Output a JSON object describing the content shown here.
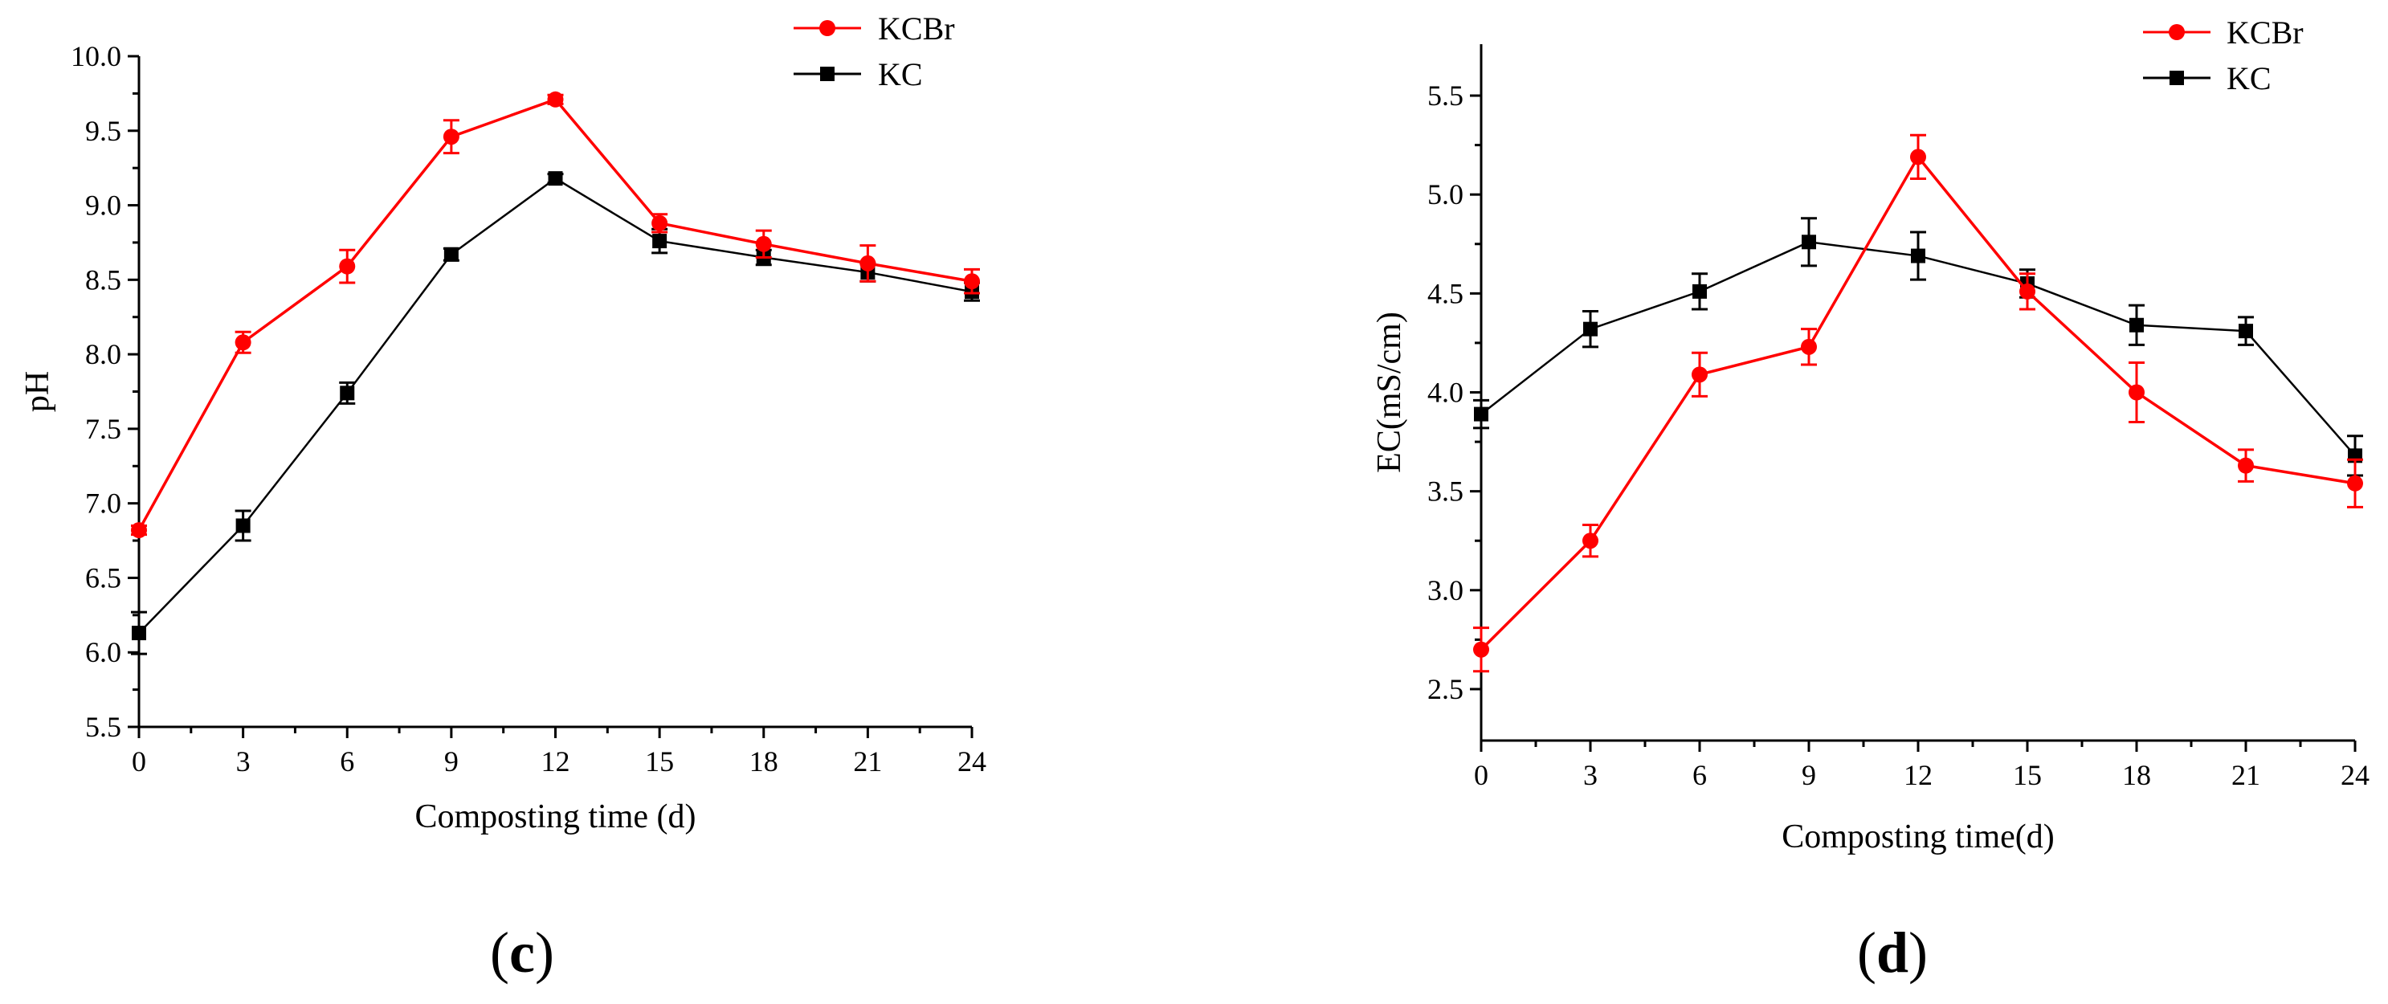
{
  "figure": {
    "panels": [
      "c",
      "d"
    ]
  },
  "colors": {
    "KCBr": "#ff0000",
    "KC": "#000000",
    "axis": "#000000"
  },
  "chart_data": [
    {
      "type": "line",
      "panel_label": "c",
      "panel_label_open": "(",
      "panel_label_close": ")",
      "title": "",
      "xlabel": "Composting time (d)",
      "ylabel": "pH",
      "x": [
        0,
        3,
        6,
        9,
        12,
        15,
        18,
        21,
        24
      ],
      "xticks": [
        "0",
        "3",
        "6",
        "9",
        "12",
        "15",
        "18",
        "21",
        "24"
      ],
      "xlim": [
        0,
        24
      ],
      "yticks": [
        "5.5",
        "6.0",
        "6.5",
        "7.0",
        "7.5",
        "8.0",
        "8.5",
        "9.0",
        "9.5",
        "10.0"
      ],
      "ylim": [
        5.5,
        10.0
      ],
      "legend_position": "top-right",
      "grid": false,
      "series": [
        {
          "name": "KCBr",
          "marker": "circle",
          "color": "#ff0000",
          "values": [
            6.82,
            8.08,
            8.59,
            9.46,
            9.71,
            8.88,
            8.74,
            8.61,
            8.49
          ],
          "errors": [
            0.03,
            0.07,
            0.11,
            0.11,
            0.03,
            0.06,
            0.09,
            0.12,
            0.08
          ]
        },
        {
          "name": "KC",
          "marker": "square",
          "color": "#000000",
          "values": [
            6.13,
            6.85,
            7.74,
            8.67,
            9.18,
            8.76,
            8.65,
            8.55,
            8.42
          ],
          "errors": [
            0.14,
            0.1,
            0.07,
            0.04,
            0.03,
            0.08,
            0.05,
            0.06,
            0.06
          ]
        }
      ]
    },
    {
      "type": "line",
      "panel_label": "d",
      "panel_label_open": "(",
      "panel_label_close": ")",
      "title": "",
      "xlabel": "Composting time(d)",
      "ylabel": "EC(mS/cm)",
      "x": [
        0,
        3,
        6,
        9,
        12,
        15,
        18,
        21,
        24
      ],
      "xticks": [
        "0",
        "3",
        "6",
        "9",
        "12",
        "15",
        "18",
        "21",
        "24"
      ],
      "xlim": [
        0,
        24
      ],
      "yticks": [
        "2.5",
        "3.0",
        "3.5",
        "4.0",
        "4.5",
        "5.0",
        "5.5"
      ],
      "ylim": [
        2.24,
        5.76
      ],
      "legend_position": "top-right",
      "grid": false,
      "series": [
        {
          "name": "KCBr",
          "marker": "circle",
          "color": "#ff0000",
          "values": [
            2.7,
            3.25,
            4.09,
            4.23,
            5.19,
            4.51,
            4.0,
            3.63,
            3.54
          ],
          "errors": [
            0.11,
            0.08,
            0.11,
            0.09,
            0.11,
            0.09,
            0.15,
            0.08,
            0.12
          ]
        },
        {
          "name": "KC",
          "marker": "square",
          "color": "#000000",
          "values": [
            3.89,
            4.32,
            4.51,
            4.76,
            4.69,
            4.55,
            4.34,
            4.31,
            3.68
          ],
          "errors": [
            0.07,
            0.09,
            0.09,
            0.12,
            0.12,
            0.07,
            0.1,
            0.07,
            0.1
          ]
        }
      ]
    }
  ]
}
